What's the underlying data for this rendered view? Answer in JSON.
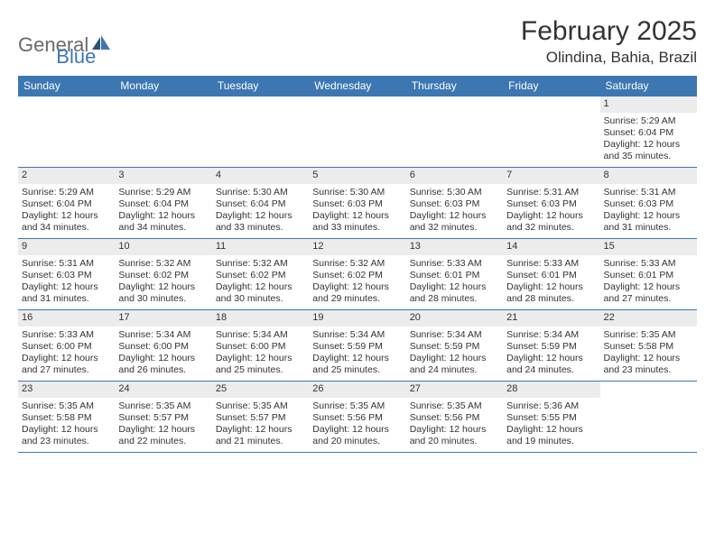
{
  "logo": {
    "part1": "General",
    "part2": "Blue"
  },
  "title": "February 2025",
  "location": "Olindina, Bahia, Brazil",
  "colors": {
    "header_bg": "#3c77b2",
    "header_text": "#ffffff",
    "daynum_bg": "#ececec",
    "body_text": "#333333",
    "rule": "#3c77b2"
  },
  "dow": [
    "Sunday",
    "Monday",
    "Tuesday",
    "Wednesday",
    "Thursday",
    "Friday",
    "Saturday"
  ],
  "weeks": [
    [
      null,
      null,
      null,
      null,
      null,
      null,
      {
        "n": "1",
        "sr": "Sunrise: 5:29 AM",
        "ss": "Sunset: 6:04 PM",
        "dl": "Daylight: 12 hours and 35 minutes."
      }
    ],
    [
      {
        "n": "2",
        "sr": "Sunrise: 5:29 AM",
        "ss": "Sunset: 6:04 PM",
        "dl": "Daylight: 12 hours and 34 minutes."
      },
      {
        "n": "3",
        "sr": "Sunrise: 5:29 AM",
        "ss": "Sunset: 6:04 PM",
        "dl": "Daylight: 12 hours and 34 minutes."
      },
      {
        "n": "4",
        "sr": "Sunrise: 5:30 AM",
        "ss": "Sunset: 6:04 PM",
        "dl": "Daylight: 12 hours and 33 minutes."
      },
      {
        "n": "5",
        "sr": "Sunrise: 5:30 AM",
        "ss": "Sunset: 6:03 PM",
        "dl": "Daylight: 12 hours and 33 minutes."
      },
      {
        "n": "6",
        "sr": "Sunrise: 5:30 AM",
        "ss": "Sunset: 6:03 PM",
        "dl": "Daylight: 12 hours and 32 minutes."
      },
      {
        "n": "7",
        "sr": "Sunrise: 5:31 AM",
        "ss": "Sunset: 6:03 PM",
        "dl": "Daylight: 12 hours and 32 minutes."
      },
      {
        "n": "8",
        "sr": "Sunrise: 5:31 AM",
        "ss": "Sunset: 6:03 PM",
        "dl": "Daylight: 12 hours and 31 minutes."
      }
    ],
    [
      {
        "n": "9",
        "sr": "Sunrise: 5:31 AM",
        "ss": "Sunset: 6:03 PM",
        "dl": "Daylight: 12 hours and 31 minutes."
      },
      {
        "n": "10",
        "sr": "Sunrise: 5:32 AM",
        "ss": "Sunset: 6:02 PM",
        "dl": "Daylight: 12 hours and 30 minutes."
      },
      {
        "n": "11",
        "sr": "Sunrise: 5:32 AM",
        "ss": "Sunset: 6:02 PM",
        "dl": "Daylight: 12 hours and 30 minutes."
      },
      {
        "n": "12",
        "sr": "Sunrise: 5:32 AM",
        "ss": "Sunset: 6:02 PM",
        "dl": "Daylight: 12 hours and 29 minutes."
      },
      {
        "n": "13",
        "sr": "Sunrise: 5:33 AM",
        "ss": "Sunset: 6:01 PM",
        "dl": "Daylight: 12 hours and 28 minutes."
      },
      {
        "n": "14",
        "sr": "Sunrise: 5:33 AM",
        "ss": "Sunset: 6:01 PM",
        "dl": "Daylight: 12 hours and 28 minutes."
      },
      {
        "n": "15",
        "sr": "Sunrise: 5:33 AM",
        "ss": "Sunset: 6:01 PM",
        "dl": "Daylight: 12 hours and 27 minutes."
      }
    ],
    [
      {
        "n": "16",
        "sr": "Sunrise: 5:33 AM",
        "ss": "Sunset: 6:00 PM",
        "dl": "Daylight: 12 hours and 27 minutes."
      },
      {
        "n": "17",
        "sr": "Sunrise: 5:34 AM",
        "ss": "Sunset: 6:00 PM",
        "dl": "Daylight: 12 hours and 26 minutes."
      },
      {
        "n": "18",
        "sr": "Sunrise: 5:34 AM",
        "ss": "Sunset: 6:00 PM",
        "dl": "Daylight: 12 hours and 25 minutes."
      },
      {
        "n": "19",
        "sr": "Sunrise: 5:34 AM",
        "ss": "Sunset: 5:59 PM",
        "dl": "Daylight: 12 hours and 25 minutes."
      },
      {
        "n": "20",
        "sr": "Sunrise: 5:34 AM",
        "ss": "Sunset: 5:59 PM",
        "dl": "Daylight: 12 hours and 24 minutes."
      },
      {
        "n": "21",
        "sr": "Sunrise: 5:34 AM",
        "ss": "Sunset: 5:59 PM",
        "dl": "Daylight: 12 hours and 24 minutes."
      },
      {
        "n": "22",
        "sr": "Sunrise: 5:35 AM",
        "ss": "Sunset: 5:58 PM",
        "dl": "Daylight: 12 hours and 23 minutes."
      }
    ],
    [
      {
        "n": "23",
        "sr": "Sunrise: 5:35 AM",
        "ss": "Sunset: 5:58 PM",
        "dl": "Daylight: 12 hours and 23 minutes."
      },
      {
        "n": "24",
        "sr": "Sunrise: 5:35 AM",
        "ss": "Sunset: 5:57 PM",
        "dl": "Daylight: 12 hours and 22 minutes."
      },
      {
        "n": "25",
        "sr": "Sunrise: 5:35 AM",
        "ss": "Sunset: 5:57 PM",
        "dl": "Daylight: 12 hours and 21 minutes."
      },
      {
        "n": "26",
        "sr": "Sunrise: 5:35 AM",
        "ss": "Sunset: 5:56 PM",
        "dl": "Daylight: 12 hours and 20 minutes."
      },
      {
        "n": "27",
        "sr": "Sunrise: 5:35 AM",
        "ss": "Sunset: 5:56 PM",
        "dl": "Daylight: 12 hours and 20 minutes."
      },
      {
        "n": "28",
        "sr": "Sunrise: 5:36 AM",
        "ss": "Sunset: 5:55 PM",
        "dl": "Daylight: 12 hours and 19 minutes."
      },
      null
    ]
  ]
}
